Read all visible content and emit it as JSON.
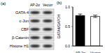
{
  "panel_a": {
    "label": "(a)",
    "columns": [
      "AP-2α",
      "Vector"
    ],
    "rows": [
      "GATA-4",
      "c-Jun",
      "CBF",
      "β-Catenin",
      "Histone H1"
    ]
  },
  "chart_data": {
    "label": "(b)",
    "type": "bar",
    "categories": [
      "AP-2α",
      "Vector"
    ],
    "values": [
      0.78,
      0.76
    ],
    "errors": [
      0.04,
      0.03
    ],
    "colors": [
      "#000000",
      "#ffffff"
    ],
    "y_label": "GATA4/GAPDH",
    "ylim": [
      0,
      1
    ],
    "yticks": [
      {
        "value": 0,
        "label": "0.0"
      },
      {
        "value": 0.5,
        "label": "0.5"
      },
      {
        "value": 1,
        "label": "1.0"
      }
    ]
  }
}
